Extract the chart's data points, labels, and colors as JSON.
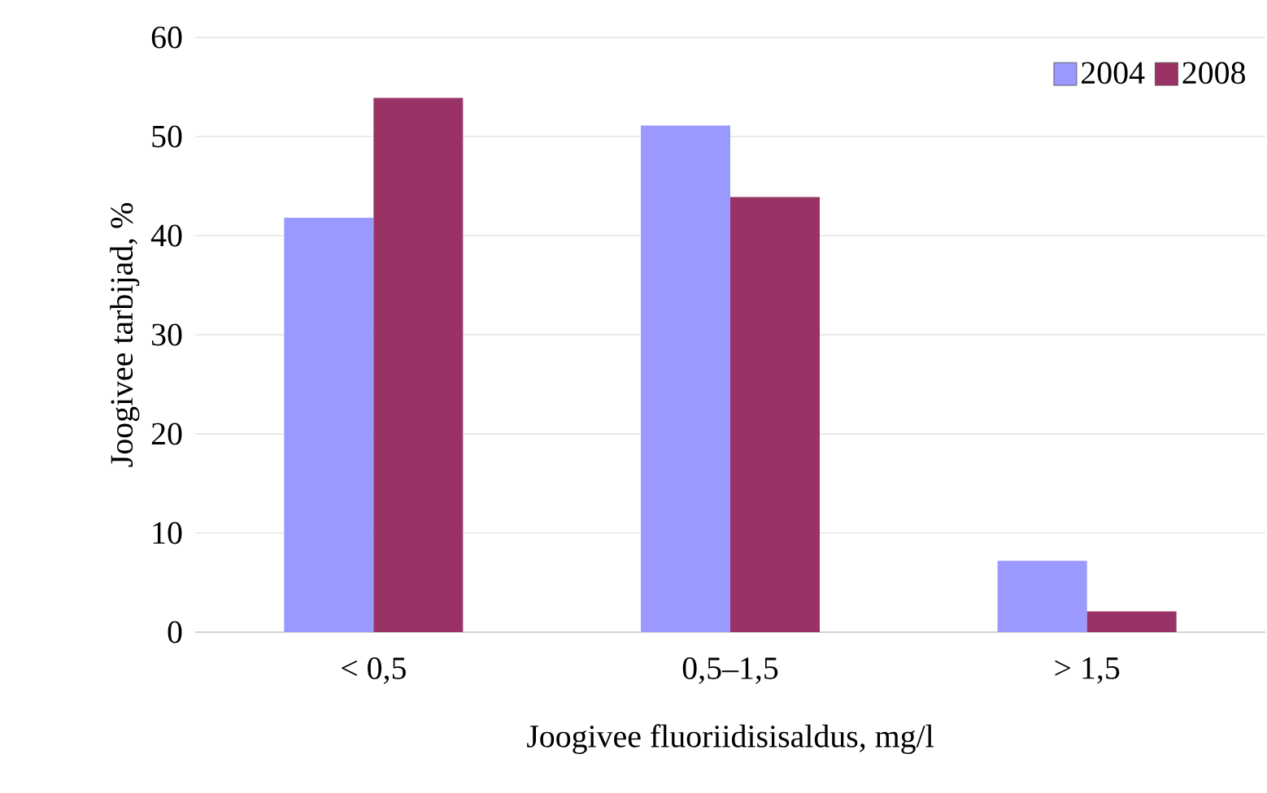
{
  "chart_data": {
    "type": "bar",
    "xlabel": "Joogivee fluoriidisisaldus, mg/l",
    "ylabel": "Joogivee tarbijad, %",
    "categories": [
      "< 0,5",
      "0,5–1,5",
      "> 1,5"
    ],
    "series": [
      {
        "name": "2004",
        "color": "#9999ff",
        "values": [
          41.8,
          51.1,
          7.2
        ]
      },
      {
        "name": "2008",
        "color": "#993366",
        "values": [
          53.9,
          43.9,
          2.1
        ]
      }
    ],
    "ylim": [
      0,
      60
    ],
    "yticks": [
      0,
      10,
      20,
      30,
      40,
      50,
      60
    ],
    "grid": "y",
    "legend": "top right"
  }
}
